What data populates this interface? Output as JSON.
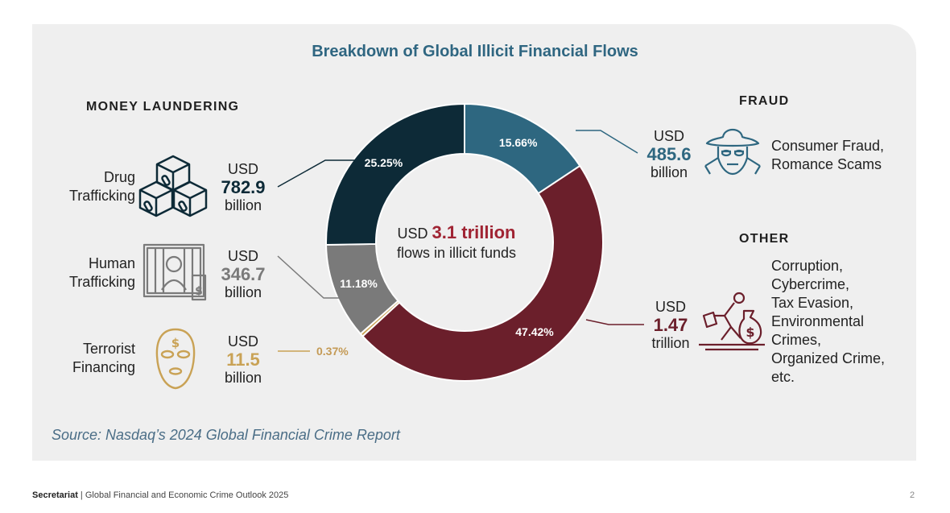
{
  "title": "Breakdown of Global Illicit Financial Flows",
  "sections": {
    "money_laundering": "MONEY LAUNDERING",
    "fraud": "FRAUD",
    "other": "OTHER"
  },
  "center": {
    "prefix": "USD",
    "value": "3.1 trillion",
    "caption": "flows in illicit funds"
  },
  "categories": {
    "drug": {
      "label_1": "Drug",
      "label_2": "Trafficking",
      "usd": "USD",
      "value": "782.9",
      "unit": "billion"
    },
    "human": {
      "label_1": "Human",
      "label_2": "Trafficking",
      "usd": "USD",
      "value": "346.7",
      "unit": "billion"
    },
    "terror": {
      "label_1": "Terrorist",
      "label_2": "Financing",
      "usd": "USD",
      "value": "11.5",
      "unit": "billion"
    },
    "fraud": {
      "label_1": "Consumer Fraud,",
      "label_2": "Romance Scams",
      "usd": "USD",
      "value": "485.6",
      "unit": "billion"
    },
    "other": {
      "lines": [
        "Corruption,",
        "Cybercrime,",
        "Tax Evasion,",
        "Environmental",
        "Crimes,",
        "Organized Crime,",
        "etc."
      ],
      "usd": "USD",
      "value": "1.47",
      "unit": "trillion"
    }
  },
  "colors": {
    "fraud": "#2e6780",
    "other": "#6b1f2b",
    "terror": "#c9a255",
    "human": "#7a7a7a",
    "drug": "#0d2a37",
    "title": "#2f6681",
    "center_value": "#a02433"
  },
  "chart_data": {
    "type": "pie",
    "title": "Breakdown of Global Illicit Financial Flows",
    "categories": [
      "Fraud",
      "Other",
      "Terrorist Financing",
      "Human Trafficking",
      "Drug Trafficking"
    ],
    "values": [
      15.66,
      47.42,
      0.37,
      11.18,
      25.25
    ],
    "labels": [
      "15.66%",
      "47.42%",
      "0.37%",
      "11.18%",
      "25.25%"
    ],
    "amounts": [
      "485.6 billion",
      "1.47 trillion",
      "11.5 billion",
      "346.7 billion",
      "782.9 billion"
    ],
    "donut": true
  },
  "source": "Source: Nasdaq’s 2024 Global Financial Crime Report",
  "footer": {
    "brand": "Secretariat",
    "text": " | Global Financial and Economic Crime Outlook 2025",
    "page": "2"
  }
}
